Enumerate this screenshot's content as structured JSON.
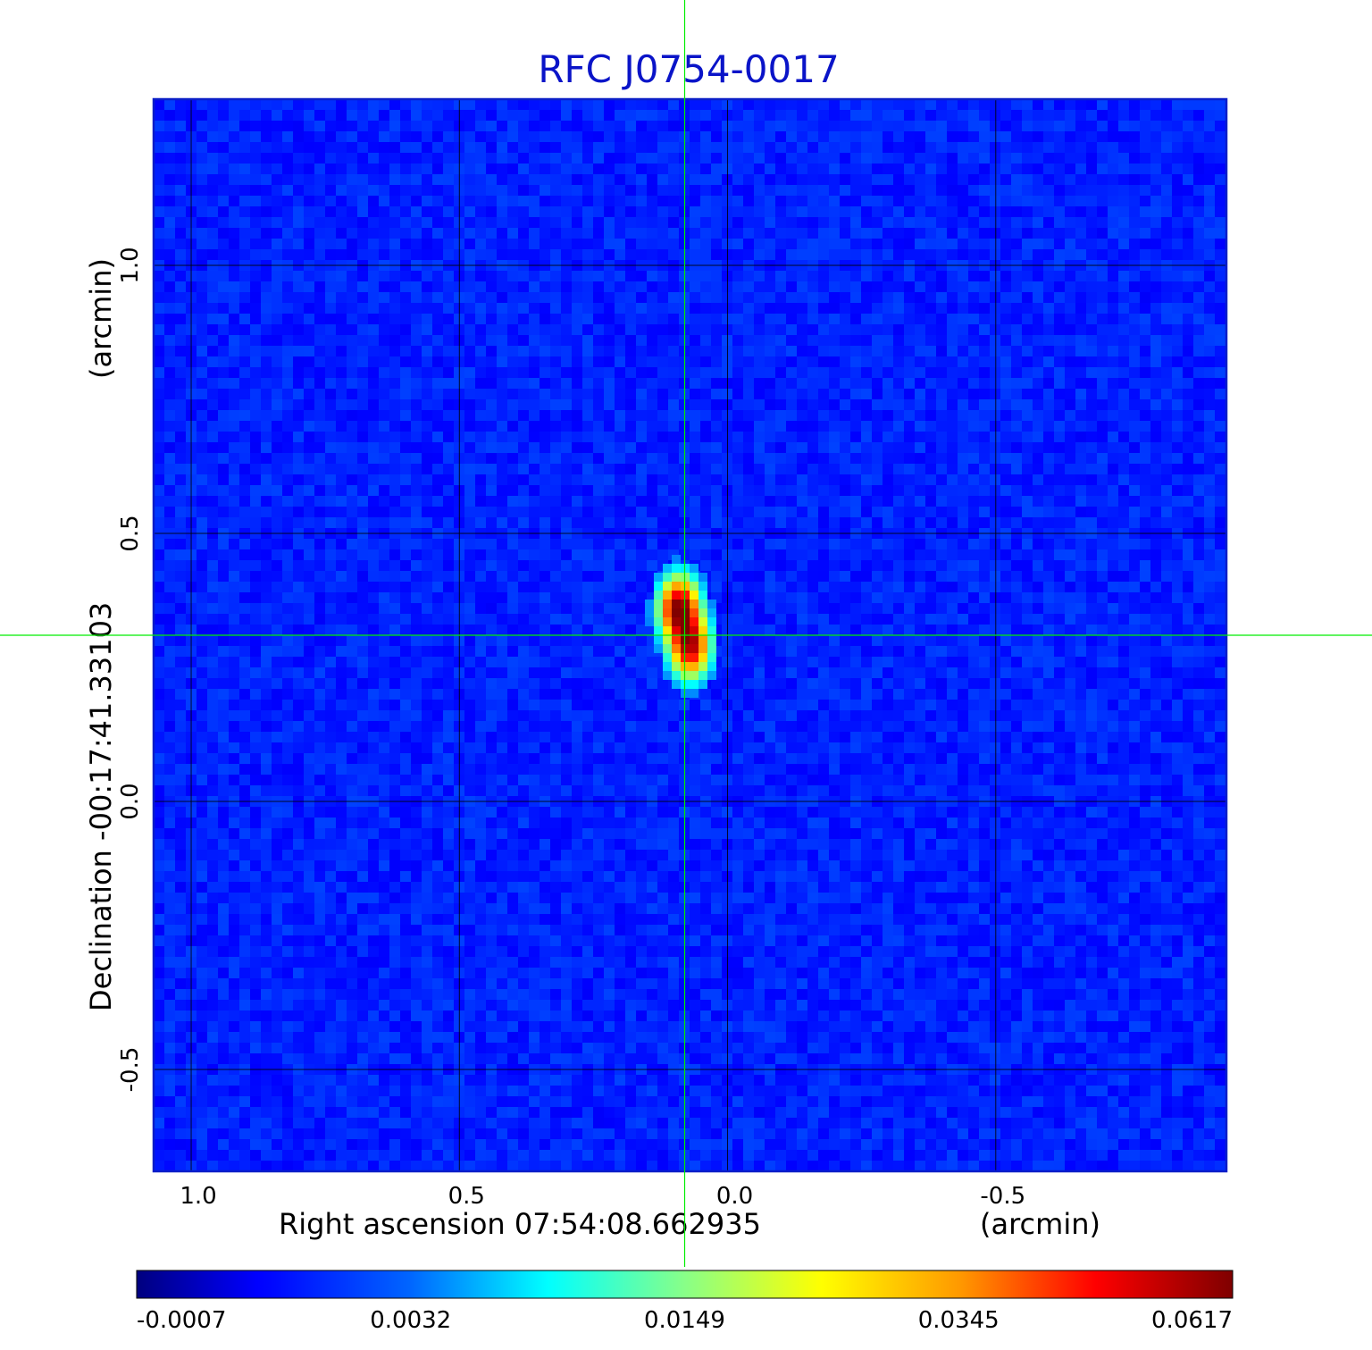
{
  "chart_data": {
    "type": "heatmap",
    "title": "RFC J0754-0017",
    "xlabel": "Right ascension  07:54:08.662935",
    "xunit": "(arcmin)",
    "ylabel": "Declination  -00:17:41.33103",
    "yunit": "(arcmin)",
    "xlim": [
      1.07,
      -0.93
    ],
    "ylim": [
      -0.69,
      1.31
    ],
    "xticks": [
      {
        "value": 1.0,
        "label": "1.0"
      },
      {
        "value": 0.5,
        "label": "0.5"
      },
      {
        "value": 0.0,
        "label": "0.0"
      },
      {
        "value": -0.5,
        "label": "-0.5"
      }
    ],
    "yticks": [
      {
        "value": 1.0,
        "label": "1.0"
      },
      {
        "value": 0.5,
        "label": "0.5"
      },
      {
        "value": 0.0,
        "label": "0.0"
      },
      {
        "value": -0.5,
        "label": "-0.5"
      }
    ],
    "grid": true,
    "crosshair": {
      "x": 0.08,
      "y": 0.31,
      "color": "#00ee00"
    },
    "source": {
      "components": [
        {
          "x": 0.09,
          "y": 0.36,
          "peak": 0.062
        },
        {
          "x": 0.07,
          "y": 0.29,
          "peak": 0.055
        }
      ]
    },
    "colorbar": {
      "colormap": "jet",
      "tick_labels": [
        "-0.0007",
        "0.0032",
        "0.0149",
        "0.0345",
        "0.0617"
      ]
    },
    "colors": {
      "title": "#0a14c8",
      "background": "#1048f0",
      "frame": "#0a1ec8"
    }
  }
}
